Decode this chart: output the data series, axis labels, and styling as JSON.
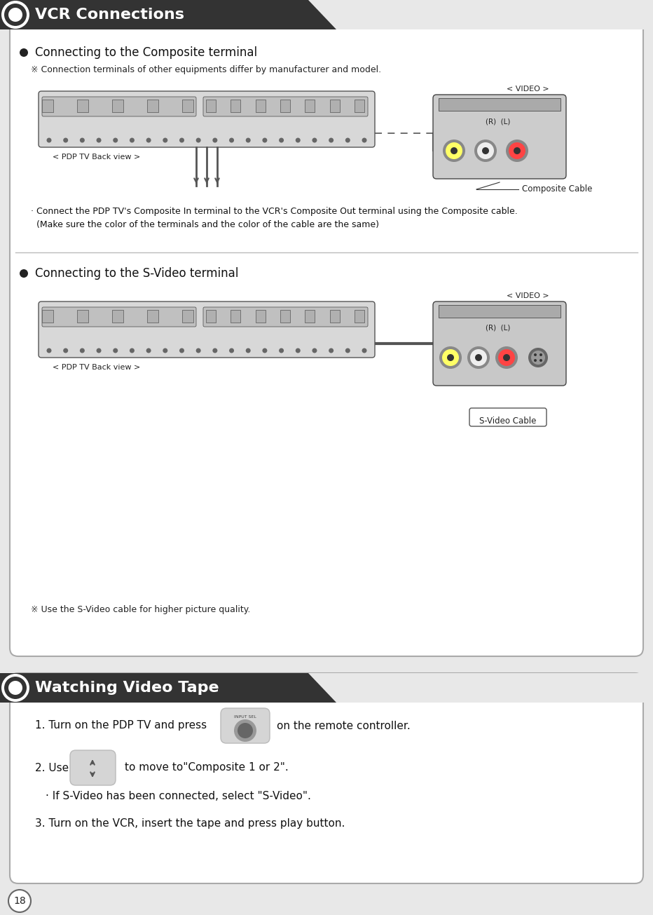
{
  "title1": "VCR Connections",
  "title2": "Watching Video Tape",
  "bg_outer": "#e8e8e8",
  "bg_section": "#ffffff",
  "header_dark": "#333333",
  "header_text": "#ffffff",
  "body_text": "#111111",
  "note_text": "#222222",
  "section1_bullet1": "Connecting to the Composite terminal",
  "section1_note1": "※ Connection terminals of other equipments differ by manufacturer and model.",
  "section1_desc": "· Connect the PDP TV's Composite In terminal to the VCR's Composite Out terminal using the Composite cable.\n  (Make sure the color of the terminals and the color of the cable are the same)",
  "section1_bullet2": "Connecting to the S-Video terminal",
  "section1_note2": "※ Use the S-Video cable for higher picture quality.",
  "video_label": "< VIDEO >",
  "pdp_label": "< PDP TV Back view >",
  "composite_label": "Composite Cable",
  "svideo_label": "S-Video Cable",
  "rl_label": "(R)  (L)",
  "step1a": "1. Turn on the PDP TV and press",
  "step1b": "on the remote controller.",
  "step2a": "2. Use",
  "step2b": "to move to\"Composite 1 or 2\".",
  "step2c": "· If S-Video has been connected, select \"S-Video\".",
  "step3": "3. Turn on the VCR, insert the tape and press play button.",
  "page_num": "18",
  "connector_y_colors": [
    "#ffff66",
    "#eeeeee",
    "#ff4444"
  ],
  "sep_color": "#bbbbbb",
  "pdp_body_color": "#d8d8d8",
  "vcr_body_color": "#cccccc",
  "vcr_body_color2": "#c8c8c8"
}
